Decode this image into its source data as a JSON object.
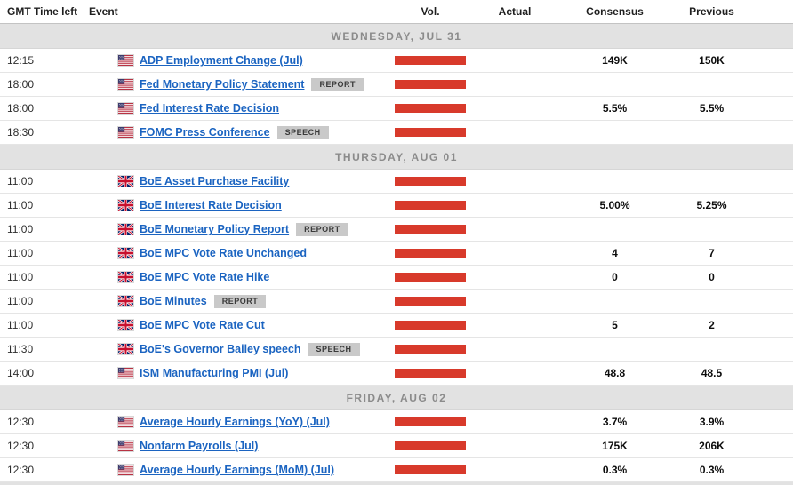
{
  "colors": {
    "volatility_bar": "#d83a2b",
    "link": "#1b64c1",
    "badge_bg": "#c9c9c9",
    "badge_text": "#3a3a3a",
    "separator_bg": "#e2e2e2",
    "separator_text": "#8b8b8b"
  },
  "table": {
    "columns": [
      {
        "label": "GMT"
      },
      {
        "label": "Time left"
      },
      {
        "label": "Event"
      },
      {
        "label": "Vol."
      },
      {
        "label": "Actual"
      },
      {
        "label": "Consensus"
      },
      {
        "label": "Previous"
      }
    ]
  },
  "sections": [
    {
      "date_label": "WEDNESDAY, JUL 31",
      "rows": [
        {
          "gmt": "12:15",
          "time_left": "",
          "flag_icon": "us-flag-icon",
          "event": "ADP Employment Change (Jul)",
          "badge": "",
          "volatility": "high",
          "actual": "",
          "consensus": "149K",
          "previous": "150K"
        },
        {
          "gmt": "18:00",
          "time_left": "",
          "flag_icon": "us-flag-icon",
          "event": "Fed Monetary Policy Statement",
          "badge": "REPORT",
          "volatility": "high",
          "actual": "",
          "consensus": "",
          "previous": ""
        },
        {
          "gmt": "18:00",
          "time_left": "",
          "flag_icon": "us-flag-icon",
          "event": "Fed Interest Rate Decision",
          "badge": "",
          "volatility": "high",
          "actual": "",
          "consensus": "5.5%",
          "previous": "5.5%"
        },
        {
          "gmt": "18:30",
          "time_left": "",
          "flag_icon": "us-flag-icon",
          "event": "FOMC Press Conference",
          "badge": "SPEECH",
          "volatility": "high",
          "actual": "",
          "consensus": "",
          "previous": ""
        }
      ]
    },
    {
      "date_label": "THURSDAY, AUG 01",
      "rows": [
        {
          "gmt": "11:00",
          "time_left": "",
          "flag_icon": "gb-flag-icon",
          "event": "BoE Asset Purchase Facility",
          "badge": "",
          "volatility": "high",
          "actual": "",
          "consensus": "",
          "previous": ""
        },
        {
          "gmt": "11:00",
          "time_left": "",
          "flag_icon": "gb-flag-icon",
          "event": "BoE Interest Rate Decision",
          "badge": "",
          "volatility": "high",
          "actual": "",
          "consensus": "5.00%",
          "previous": "5.25%"
        },
        {
          "gmt": "11:00",
          "time_left": "",
          "flag_icon": "gb-flag-icon",
          "event": "BoE Monetary Policy Report",
          "badge": "REPORT",
          "volatility": "high",
          "actual": "",
          "consensus": "",
          "previous": ""
        },
        {
          "gmt": "11:00",
          "time_left": "",
          "flag_icon": "gb-flag-icon",
          "event": "BoE MPC Vote Rate Unchanged",
          "badge": "",
          "volatility": "high",
          "actual": "",
          "consensus": "4",
          "previous": "7"
        },
        {
          "gmt": "11:00",
          "time_left": "",
          "flag_icon": "gb-flag-icon",
          "event": "BoE MPC Vote Rate Hike",
          "badge": "",
          "volatility": "high",
          "actual": "",
          "consensus": "0",
          "previous": "0"
        },
        {
          "gmt": "11:00",
          "time_left": "",
          "flag_icon": "gb-flag-icon",
          "event": "BoE Minutes",
          "badge": "REPORT",
          "volatility": "high",
          "actual": "",
          "consensus": "",
          "previous": ""
        },
        {
          "gmt": "11:00",
          "time_left": "",
          "flag_icon": "gb-flag-icon",
          "event": "BoE MPC Vote Rate Cut",
          "badge": "",
          "volatility": "high",
          "actual": "",
          "consensus": "5",
          "previous": "2"
        },
        {
          "gmt": "11:30",
          "time_left": "",
          "flag_icon": "gb-flag-icon",
          "event": "BoE's Governor Bailey speech",
          "badge": "SPEECH",
          "volatility": "high",
          "actual": "",
          "consensus": "",
          "previous": ""
        },
        {
          "gmt": "14:00",
          "time_left": "",
          "flag_icon": "us-flag-icon",
          "event": "ISM Manufacturing PMI (Jul)",
          "badge": "",
          "volatility": "high",
          "actual": "",
          "consensus": "48.8",
          "previous": "48.5"
        }
      ]
    },
    {
      "date_label": "FRIDAY, AUG 02",
      "rows": [
        {
          "gmt": "12:30",
          "time_left": "",
          "flag_icon": "us-flag-icon",
          "event": "Average Hourly Earnings (YoY) (Jul)",
          "badge": "",
          "volatility": "high",
          "actual": "",
          "consensus": "3.7%",
          "previous": "3.9%"
        },
        {
          "gmt": "12:30",
          "time_left": "",
          "flag_icon": "us-flag-icon",
          "event": "Nonfarm Payrolls (Jul)",
          "badge": "",
          "volatility": "high",
          "actual": "",
          "consensus": "175K",
          "previous": "206K"
        },
        {
          "gmt": "12:30",
          "time_left": "",
          "flag_icon": "us-flag-icon",
          "event": "Average Hourly Earnings (MoM) (Jul)",
          "badge": "",
          "volatility": "high",
          "actual": "",
          "consensus": "0.3%",
          "previous": "0.3%"
        }
      ]
    }
  ]
}
